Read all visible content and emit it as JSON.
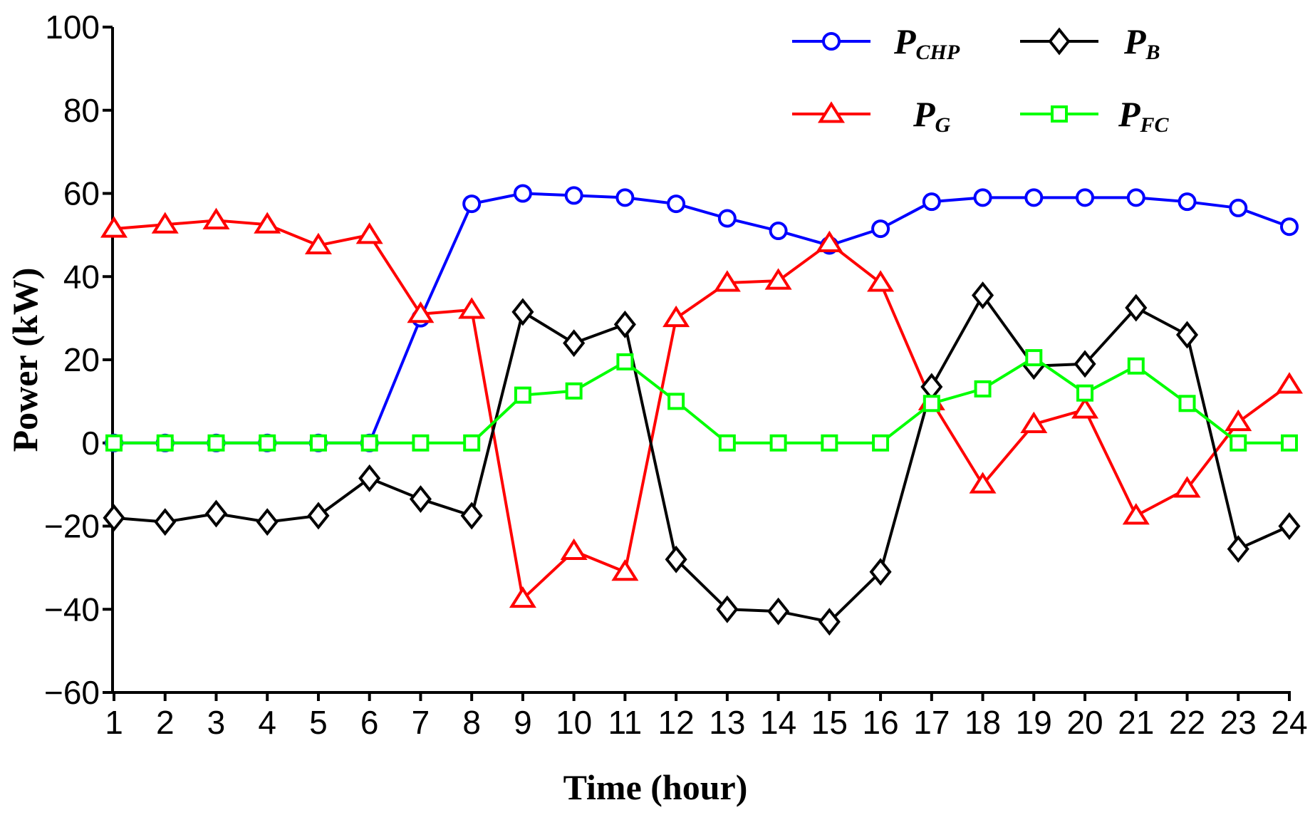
{
  "chart_data": {
    "type": "line",
    "title": "",
    "xlabel": "Time (hour)",
    "ylabel": "Power (kW)",
    "xlim": [
      1,
      24
    ],
    "ylim": [
      -60,
      100
    ],
    "x": [
      1,
      2,
      3,
      4,
      5,
      6,
      7,
      8,
      9,
      10,
      11,
      12,
      13,
      14,
      15,
      16,
      17,
      18,
      19,
      20,
      21,
      22,
      23,
      24
    ],
    "yticks": [
      100,
      80,
      60,
      40,
      20,
      0,
      -20,
      -40,
      -60
    ],
    "ytick_labels": [
      "100",
      "80",
      "60",
      "40",
      "20",
      "0",
      "−20",
      "−40",
      "−60"
    ],
    "xtick_labels": [
      "1",
      "2",
      "3",
      "4",
      "5",
      "6",
      "7",
      "8",
      "9",
      "10",
      "11",
      "12",
      "13",
      "14",
      "15",
      "16",
      "17",
      "18",
      "19",
      "20",
      "21",
      "22",
      "23",
      "24"
    ],
    "legend_position": "top-right",
    "series": [
      {
        "name": "PCHP",
        "label_main": "P",
        "label_sub": "CHP",
        "color": "#0000ff",
        "marker": "circle",
        "values": [
          0,
          0,
          0,
          0,
          0,
          0,
          30,
          57.5,
          60,
          59.5,
          59,
          57.5,
          54,
          51,
          47.5,
          51.5,
          58,
          59,
          59,
          59,
          59,
          58,
          56.5,
          52
        ]
      },
      {
        "name": "PG",
        "label_main": "P",
        "label_sub": "G",
        "color": "#ff0000",
        "marker": "triangle",
        "values": [
          51.5,
          52.5,
          53.5,
          52.5,
          47.5,
          50,
          31,
          32,
          -37.5,
          -26,
          -31,
          30,
          38.5,
          39,
          48,
          38.5,
          10,
          -10,
          4.5,
          8,
          -17.5,
          -11,
          5,
          14
        ]
      },
      {
        "name": "PB",
        "label_main": "P",
        "label_sub": "B",
        "color": "#000000",
        "marker": "diamond",
        "values": [
          -18,
          -19,
          -17,
          -19,
          -17.5,
          -8.5,
          -13.5,
          -17.5,
          31.5,
          24,
          28.5,
          -28,
          -40,
          -40.5,
          -43,
          -31,
          13.5,
          35.5,
          18.5,
          19,
          32.5,
          26,
          -25.5,
          -20
        ]
      },
      {
        "name": "PFC",
        "label_main": "P",
        "label_sub": "FC",
        "color": "#00ff00",
        "marker": "square",
        "values": [
          0,
          0,
          0,
          0,
          0,
          0,
          0,
          0,
          11.5,
          12.5,
          19.5,
          10,
          0,
          0,
          0,
          0,
          9.5,
          13,
          20.5,
          12,
          18.5,
          9.5,
          0,
          0
        ]
      }
    ]
  }
}
